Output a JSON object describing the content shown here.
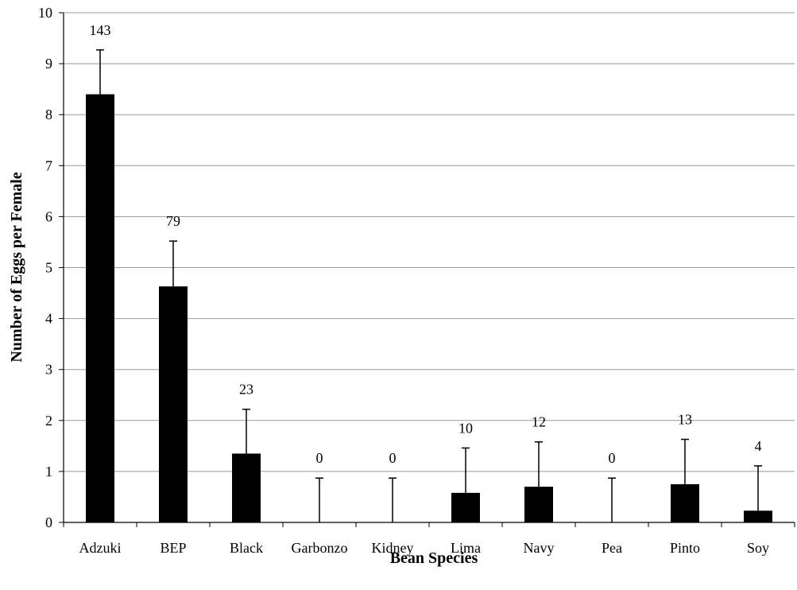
{
  "chart_data": {
    "type": "bar",
    "title": "",
    "xlabel": "Bean Species",
    "ylabel": "Number of Eggs per Female",
    "ylim": [
      0,
      10
    ],
    "yticks": [
      0,
      1,
      2,
      3,
      4,
      5,
      6,
      7,
      8,
      9,
      10
    ],
    "grid": true,
    "categories": [
      "Adzuki",
      "BEP",
      "Black",
      "Garbonzo",
      "Kidney",
      "Lima",
      "Navy",
      "Pea",
      "Pinto",
      "Soy"
    ],
    "values": [
      8.4,
      4.63,
      1.35,
      0,
      0,
      0.58,
      0.7,
      0,
      0.75,
      0.23
    ],
    "error_upper": [
      9.27,
      5.52,
      2.22,
      0.87,
      0.87,
      1.46,
      1.58,
      0.87,
      1.63,
      1.11
    ],
    "data_labels": [
      "143",
      "79",
      "23",
      "0",
      "0",
      "10",
      "12",
      "0",
      "13",
      "4"
    ],
    "bar_color": "#000000",
    "grid_color": "#999999"
  }
}
